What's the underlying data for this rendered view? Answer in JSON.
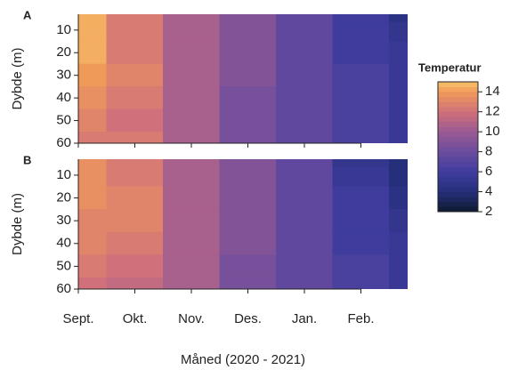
{
  "chart_data": [
    {
      "type": "heatmap",
      "title": "A",
      "ylabel": "Dybde (m)",
      "depths": [
        3,
        10,
        20,
        30,
        40,
        50,
        60
      ],
      "values": [
        [
          14.5,
          14.5,
          14.5,
          14,
          13.5,
          13,
          12.5
        ],
        [
          12.5,
          12.5,
          12.5,
          13,
          12.5,
          12,
          12.5
        ],
        [
          10.5,
          10.5,
          10.5,
          10.5,
          10.5,
          10.5,
          10.5
        ],
        [
          9,
          9,
          9,
          9,
          8.5,
          8.5,
          8.5
        ],
        [
          7.5,
          7.5,
          7.5,
          7.5,
          7.5,
          7.5,
          7.5
        ],
        [
          6,
          6,
          6,
          6.5,
          6.5,
          6.5,
          6.5
        ],
        [
          4.5,
          5,
          5.5,
          5.5,
          5.5,
          5.5,
          5.5
        ]
      ],
      "ylim": [
        60,
        3
      ],
      "yticks": [
        10,
        20,
        30,
        40,
        50,
        60
      ]
    },
    {
      "type": "heatmap",
      "title": "B",
      "ylabel": "Dybde (m)",
      "xlabel": "Måned (2020 - 2021)",
      "categories": [
        "Sept.",
        "Okt.",
        "Nov.",
        "Des.",
        "Jan.",
        "Feb.",
        null
      ],
      "depths": [
        3,
        10,
        20,
        30,
        40,
        50,
        60
      ],
      "values": [
        [
          13.5,
          13.5,
          13.5,
          13,
          13,
          12.5,
          12
        ],
        [
          12.5,
          12.5,
          13,
          13,
          12.5,
          12,
          11.5
        ],
        [
          10.5,
          10.5,
          10.5,
          10.5,
          10.5,
          10.5,
          10.5
        ],
        [
          9,
          9,
          9,
          9,
          9,
          8.5,
          8.5
        ],
        [
          7.5,
          7.5,
          7.5,
          7.5,
          7.5,
          7.5,
          7.5
        ],
        [
          5,
          5.5,
          6,
          6,
          6,
          6.5,
          6.5
        ],
        [
          4,
          4,
          4.5,
          5,
          5.5,
          5.5,
          5.5
        ]
      ],
      "ylim": [
        60,
        3
      ],
      "yticks": [
        10,
        20,
        30,
        40,
        50,
        60
      ]
    }
  ],
  "colorbar": {
    "title": "Temperatur",
    "lim": [
      2,
      15
    ],
    "ticks": [
      2,
      4,
      6,
      8,
      10,
      12,
      14
    ],
    "colorscale": [
      {
        "value": 2,
        "color": "#0e1a2e"
      },
      {
        "value": 4,
        "color": "#262f7a"
      },
      {
        "value": 6,
        "color": "#3f3c9e"
      },
      {
        "value": 8,
        "color": "#6b4c9e"
      },
      {
        "value": 10,
        "color": "#9a5a92"
      },
      {
        "value": 12,
        "color": "#d0707a"
      },
      {
        "value": 14,
        "color": "#f09a5a"
      },
      {
        "value": 15,
        "color": "#f7c268"
      }
    ]
  }
}
